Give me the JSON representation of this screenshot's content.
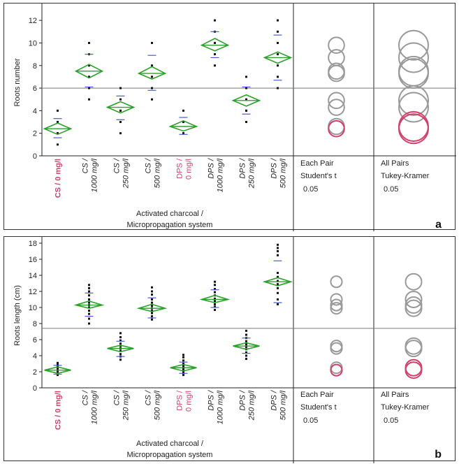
{
  "colors": {
    "diamond": "#2ca02c",
    "errorbar": "#4a5bd4",
    "points": "#111111",
    "circle_gray": "#999999",
    "circle_pink": "#d0406a",
    "control_label": "#d0406a"
  },
  "x_title_line1": "Activated charcoal /",
  "x_title_line2": "Micropropagation system",
  "comparisons": [
    {
      "line1": "Each Pair",
      "line2": "Student's t",
      "alpha": "0.05"
    },
    {
      "line1": "All Pairs",
      "line2": "Tukey-Kramer",
      "alpha": "0.05"
    }
  ],
  "categories": [
    {
      "line1": "CS / 0 mg/l",
      "line2": "",
      "style": "ctl"
    },
    {
      "line1": "CS /",
      "line2": "1000 mg/l",
      "style": ""
    },
    {
      "line1": "CS /",
      "line2": "250 mg/l",
      "style": ""
    },
    {
      "line1": "CS /",
      "line2": "500 mg/l",
      "style": ""
    },
    {
      "line1": "DPS /",
      "line2": "0 mg/l",
      "style": "dps0"
    },
    {
      "line1": "DPS /",
      "line2": "1000 mg/l",
      "style": ""
    },
    {
      "line1": "DPS /",
      "line2": "250 mg/l",
      "style": ""
    },
    {
      "line1": "DPS /",
      "line2": "500 mg/l",
      "style": ""
    }
  ],
  "chart_data": [
    {
      "type": "scatter",
      "panel_label": "a",
      "ylabel": "Roots number",
      "ylim": [
        0,
        13
      ],
      "yticks": [
        0,
        2,
        4,
        6,
        8,
        10,
        12
      ],
      "grand_mean": 6.0,
      "groups": [
        {
          "mean": 2.4,
          "ci": [
            1.9,
            2.9
          ],
          "sd": [
            1.6,
            3.3
          ],
          "points": [
            1,
            2,
            2,
            3,
            3,
            4
          ]
        },
        {
          "mean": 7.5,
          "ci": [
            6.9,
            8.1
          ],
          "sd": [
            6.1,
            9.0
          ],
          "points": [
            5,
            6,
            7,
            7,
            8,
            9,
            10
          ]
        },
        {
          "mean": 4.3,
          "ci": [
            3.8,
            4.8
          ],
          "sd": [
            3.2,
            5.3
          ],
          "points": [
            2,
            3,
            4,
            4,
            5,
            6
          ]
        },
        {
          "mean": 7.3,
          "ci": [
            6.8,
            7.9
          ],
          "sd": [
            5.8,
            8.9
          ],
          "points": [
            5,
            6,
            7,
            7,
            8,
            10
          ]
        },
        {
          "mean": 2.6,
          "ci": [
            2.2,
            3.1
          ],
          "sd": [
            1.9,
            3.4
          ],
          "points": [
            2,
            2,
            3,
            3,
            4
          ]
        },
        {
          "mean": 9.8,
          "ci": [
            9.3,
            10.4
          ],
          "sd": [
            8.7,
            11.0
          ],
          "points": [
            8,
            9,
            10,
            10,
            11,
            12
          ]
        },
        {
          "mean": 4.9,
          "ci": [
            4.4,
            5.4
          ],
          "sd": [
            3.7,
            6.1
          ],
          "points": [
            3,
            4,
            4,
            5,
            6,
            7
          ]
        },
        {
          "mean": 8.7,
          "ci": [
            8.2,
            9.2
          ],
          "sd": [
            6.7,
            10.7
          ],
          "points": [
            6,
            7,
            8,
            9,
            10,
            11,
            12
          ]
        }
      ],
      "circles_each_pair": [
        {
          "center": 9.8,
          "radius": 0.7,
          "color": "gray"
        },
        {
          "center": 8.7,
          "radius": 0.7,
          "color": "gray"
        },
        {
          "center": 7.5,
          "radius": 0.7,
          "color": "gray"
        },
        {
          "center": 7.3,
          "radius": 0.7,
          "color": "gray"
        },
        {
          "center": 4.9,
          "radius": 0.7,
          "color": "gray"
        },
        {
          "center": 4.3,
          "radius": 0.7,
          "color": "gray"
        },
        {
          "center": 2.6,
          "radius": 0.7,
          "color": "gray"
        },
        {
          "center": 2.4,
          "radius": 0.7,
          "color": "pink"
        }
      ],
      "circles_all_pairs": [
        {
          "center": 9.8,
          "radius": 1.3,
          "color": "gray"
        },
        {
          "center": 8.7,
          "radius": 1.3,
          "color": "gray"
        },
        {
          "center": 7.5,
          "radius": 1.3,
          "color": "gray"
        },
        {
          "center": 7.3,
          "radius": 1.3,
          "color": "gray"
        },
        {
          "center": 4.9,
          "radius": 1.3,
          "color": "gray"
        },
        {
          "center": 4.3,
          "radius": 1.3,
          "color": "gray"
        },
        {
          "center": 2.6,
          "radius": 1.3,
          "color": "pink"
        },
        {
          "center": 2.4,
          "radius": 1.3,
          "color": "pink"
        }
      ]
    },
    {
      "type": "scatter",
      "panel_label": "b",
      "ylabel": "Roots length (cm)",
      "ylim": [
        0,
        18
      ],
      "yticks": [
        0,
        2,
        4,
        6,
        8,
        10,
        12,
        14,
        16,
        18
      ],
      "grand_mean": 7.4,
      "groups": [
        {
          "mean": 2.2,
          "ci": [
            1.8,
            2.6
          ],
          "sd": [
            1.7,
            2.8
          ],
          "points": [
            1.6,
            1.8,
            2.0,
            2.1,
            2.2,
            2.3,
            2.5,
            2.7,
            2.9,
            3.1
          ]
        },
        {
          "mean": 10.3,
          "ci": [
            9.9,
            10.8
          ],
          "sd": [
            8.9,
            11.8
          ],
          "points": [
            8.0,
            8.6,
            9.2,
            9.6,
            10.0,
            10.3,
            10.6,
            11.0,
            11.5,
            12.0,
            12.4,
            12.8
          ]
        },
        {
          "mean": 4.9,
          "ci": [
            4.5,
            5.3
          ],
          "sd": [
            3.9,
            5.8
          ],
          "points": [
            3.5,
            3.9,
            4.2,
            4.6,
            4.9,
            5.2,
            5.5,
            5.9,
            6.3,
            6.8
          ]
        },
        {
          "mean": 9.9,
          "ci": [
            9.5,
            10.4
          ],
          "sd": [
            8.7,
            11.2
          ],
          "points": [
            8.5,
            8.9,
            9.3,
            9.6,
            9.9,
            10.2,
            10.6,
            11.0,
            11.6,
            12.0,
            12.5
          ]
        },
        {
          "mean": 2.5,
          "ci": [
            2.1,
            2.9
          ],
          "sd": [
            1.8,
            3.2
          ],
          "points": [
            1.6,
            1.9,
            2.1,
            2.3,
            2.5,
            2.7,
            3.0,
            3.4,
            3.8,
            4.1
          ]
        },
        {
          "mean": 11.0,
          "ci": [
            10.6,
            11.5
          ],
          "sd": [
            10.0,
            12.2
          ],
          "points": [
            9.7,
            10.1,
            10.4,
            10.8,
            11.1,
            11.5,
            11.9,
            12.3,
            12.8,
            13.2
          ]
        },
        {
          "mean": 5.2,
          "ci": [
            4.8,
            5.6
          ],
          "sd": [
            4.3,
            6.2
          ],
          "points": [
            3.6,
            4.0,
            4.4,
            4.8,
            5.1,
            5.4,
            5.8,
            6.2,
            6.6,
            7.1
          ]
        },
        {
          "mean": 13.2,
          "ci": [
            12.7,
            13.7
          ],
          "sd": [
            10.6,
            15.8
          ],
          "points": [
            10.4,
            11.0,
            11.8,
            12.4,
            12.9,
            13.3,
            13.8,
            14.3,
            16.5,
            17.0,
            17.4,
            17.8
          ]
        }
      ],
      "circles_each_pair": [
        {
          "center": 13.2,
          "radius": 0.7,
          "color": "gray"
        },
        {
          "center": 11.0,
          "radius": 0.7,
          "color": "gray"
        },
        {
          "center": 10.3,
          "radius": 0.7,
          "color": "gray"
        },
        {
          "center": 9.9,
          "radius": 0.7,
          "color": "gray"
        },
        {
          "center": 5.2,
          "radius": 0.7,
          "color": "gray"
        },
        {
          "center": 4.9,
          "radius": 0.7,
          "color": "gray"
        },
        {
          "center": 2.5,
          "radius": 0.7,
          "color": "gray"
        },
        {
          "center": 2.2,
          "radius": 0.7,
          "color": "pink"
        }
      ],
      "circles_all_pairs": [
        {
          "center": 13.2,
          "radius": 1.0,
          "color": "gray"
        },
        {
          "center": 11.0,
          "radius": 1.0,
          "color": "gray"
        },
        {
          "center": 10.3,
          "radius": 1.0,
          "color": "gray"
        },
        {
          "center": 9.9,
          "radius": 1.0,
          "color": "gray"
        },
        {
          "center": 5.2,
          "radius": 1.0,
          "color": "gray"
        },
        {
          "center": 4.9,
          "radius": 1.0,
          "color": "gray"
        },
        {
          "center": 2.5,
          "radius": 1.0,
          "color": "pink"
        },
        {
          "center": 2.2,
          "radius": 1.0,
          "color": "pink"
        }
      ]
    }
  ]
}
